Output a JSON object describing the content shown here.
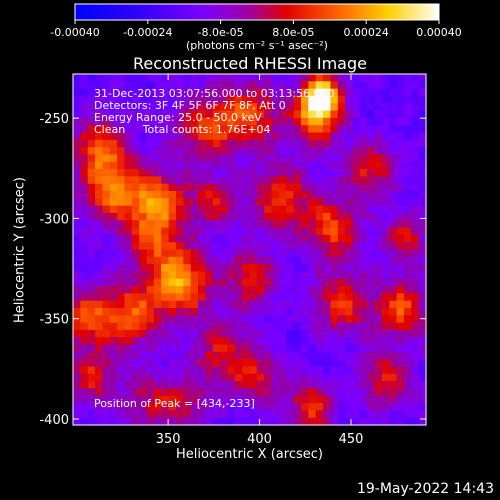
{
  "colorbar": {
    "ticks": [
      "-0.00040",
      "-0.00024",
      "-8.0e-05",
      "8.0e-05",
      "0.00024",
      "0.00040"
    ],
    "unit_label": "(photons cm⁻² s⁻¹ asec⁻²)",
    "range": [
      -0.0004,
      0.0004
    ]
  },
  "chart_data": {
    "type": "heatmap",
    "title": "Reconstructed RHESSI Image",
    "xlabel": "Heliocentric X (arcsec)",
    "ylabel": "Heliocentric Y (arcsec)",
    "xlim": [
      298,
      491
    ],
    "ylim": [
      -403,
      -228
    ],
    "xticks": [
      350,
      400,
      450
    ],
    "yticks": [
      -250,
      -300,
      -350,
      -400
    ],
    "colormap": "rhessi-blue-purple-red-yellow-white",
    "value_range": [
      -0.0004,
      0.0004
    ],
    "peak": {
      "x": 434,
      "y": -233
    },
    "annotations": {
      "time_range": "31-Dec-2013 03:07:56.000 to 03:13:56.000",
      "detectors": "Detectors: 3F 4F 5F 6F 7F 8F, Att 0",
      "energy": "Energy Range: 25.0 - 50.0 keV",
      "clean": "Clean     Total counts: 1.76E+04",
      "peak_text": "Position of Peak = [434,-233]"
    }
  },
  "footer": {
    "timestamp": "19-May-2022 14:43"
  }
}
